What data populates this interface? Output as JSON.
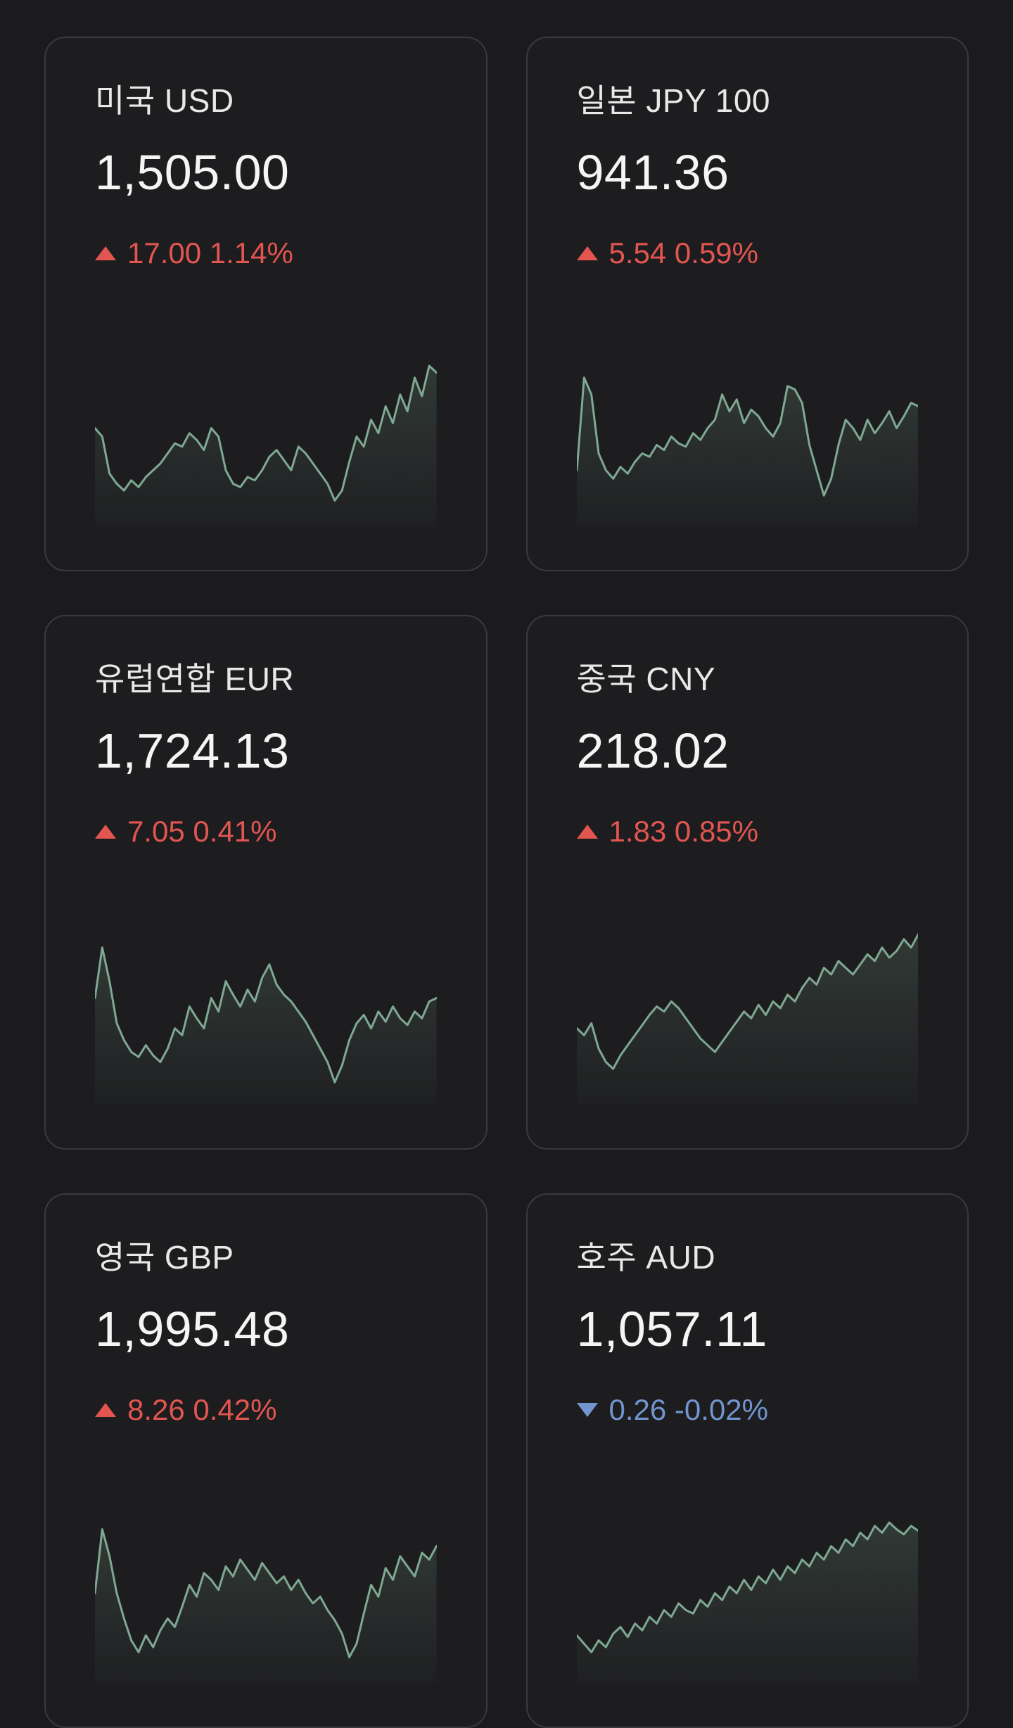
{
  "theme": {
    "bg": "#1b1b1d",
    "card_bg": "#1d1d1f",
    "card_border": "#3a3a3c",
    "title_color": "#e8e8e6",
    "price_color": "#f5f5f3",
    "up_color": "#e25550",
    "down_color": "#7195ce",
    "spark_line": "#7fa892"
  },
  "cards": [
    {
      "title": "미국 USD",
      "price": "1,505.00",
      "direction": "up",
      "change": "17.00 1.14%",
      "chart_data": {
        "type": "line",
        "values": [
          55,
          50,
          28,
          22,
          18,
          24,
          20,
          26,
          30,
          34,
          40,
          46,
          44,
          52,
          48,
          42,
          55,
          50,
          30,
          22,
          20,
          26,
          24,
          30,
          38,
          42,
          36,
          30,
          44,
          40,
          34,
          28,
          22,
          12,
          18,
          35,
          50,
          44,
          60,
          52,
          68,
          58,
          75,
          65,
          85,
          74,
          92,
          88
        ]
      }
    },
    {
      "title": "일본 JPY 100",
      "price": "941.36",
      "direction": "up",
      "change": "5.54 0.59%",
      "chart_data": {
        "type": "line",
        "values": [
          30,
          85,
          75,
          40,
          30,
          25,
          32,
          28,
          35,
          40,
          38,
          45,
          42,
          50,
          46,
          44,
          52,
          48,
          55,
          60,
          75,
          65,
          72,
          58,
          66,
          62,
          55,
          50,
          58,
          80,
          78,
          70,
          45,
          30,
          15,
          25,
          45,
          60,
          55,
          48,
          60,
          52,
          58,
          65,
          55,
          62,
          70,
          68
        ]
      }
    },
    {
      "title": "유럽연합 EUR",
      "price": "1,724.13",
      "direction": "up",
      "change": "7.05 0.41%",
      "chart_data": {
        "type": "line",
        "values": [
          60,
          90,
          70,
          45,
          35,
          28,
          25,
          32,
          26,
          22,
          30,
          42,
          38,
          55,
          48,
          42,
          60,
          52,
          70,
          62,
          55,
          65,
          58,
          72,
          80,
          68,
          62,
          58,
          52,
          46,
          38,
          30,
          22,
          10,
          20,
          35,
          45,
          50,
          42,
          52,
          46,
          55,
          48,
          44,
          52,
          48,
          58,
          60
        ]
      }
    },
    {
      "title": "중국 CNY",
      "price": "218.02",
      "direction": "up",
      "change": "1.83 0.85%",
      "chart_data": {
        "type": "line",
        "values": [
          42,
          38,
          45,
          30,
          22,
          18,
          26,
          32,
          38,
          44,
          50,
          55,
          52,
          58,
          54,
          48,
          42,
          36,
          32,
          28,
          34,
          40,
          46,
          52,
          48,
          56,
          50,
          58,
          54,
          62,
          58,
          66,
          72,
          68,
          78,
          74,
          82,
          78,
          74,
          80,
          86,
          82,
          90,
          84,
          88,
          95,
          90,
          98
        ]
      }
    },
    {
      "title": "영국 GBP",
      "price": "1,995.48",
      "direction": "up",
      "change": "8.26 0.42%",
      "chart_data": {
        "type": "line",
        "values": [
          50,
          88,
          72,
          50,
          35,
          22,
          15,
          25,
          18,
          28,
          35,
          30,
          42,
          55,
          48,
          62,
          58,
          52,
          66,
          60,
          70,
          64,
          58,
          68,
          62,
          56,
          60,
          52,
          58,
          50,
          44,
          48,
          40,
          34,
          26,
          12,
          20,
          38,
          55,
          48,
          65,
          58,
          72,
          66,
          60,
          74,
          70,
          78
        ]
      }
    },
    {
      "title": "호주 AUD",
      "price": "1,057.11",
      "direction": "down",
      "change": "0.26 -0.02%",
      "chart_data": {
        "type": "line",
        "values": [
          25,
          20,
          15,
          22,
          18,
          26,
          30,
          24,
          32,
          28,
          36,
          32,
          40,
          36,
          44,
          40,
          38,
          46,
          42,
          50,
          46,
          54,
          50,
          58,
          52,
          60,
          56,
          64,
          58,
          66,
          62,
          70,
          66,
          74,
          70,
          78,
          74,
          82,
          78,
          86,
          82,
          90,
          86,
          92,
          88,
          85,
          90,
          87
        ]
      }
    }
  ]
}
